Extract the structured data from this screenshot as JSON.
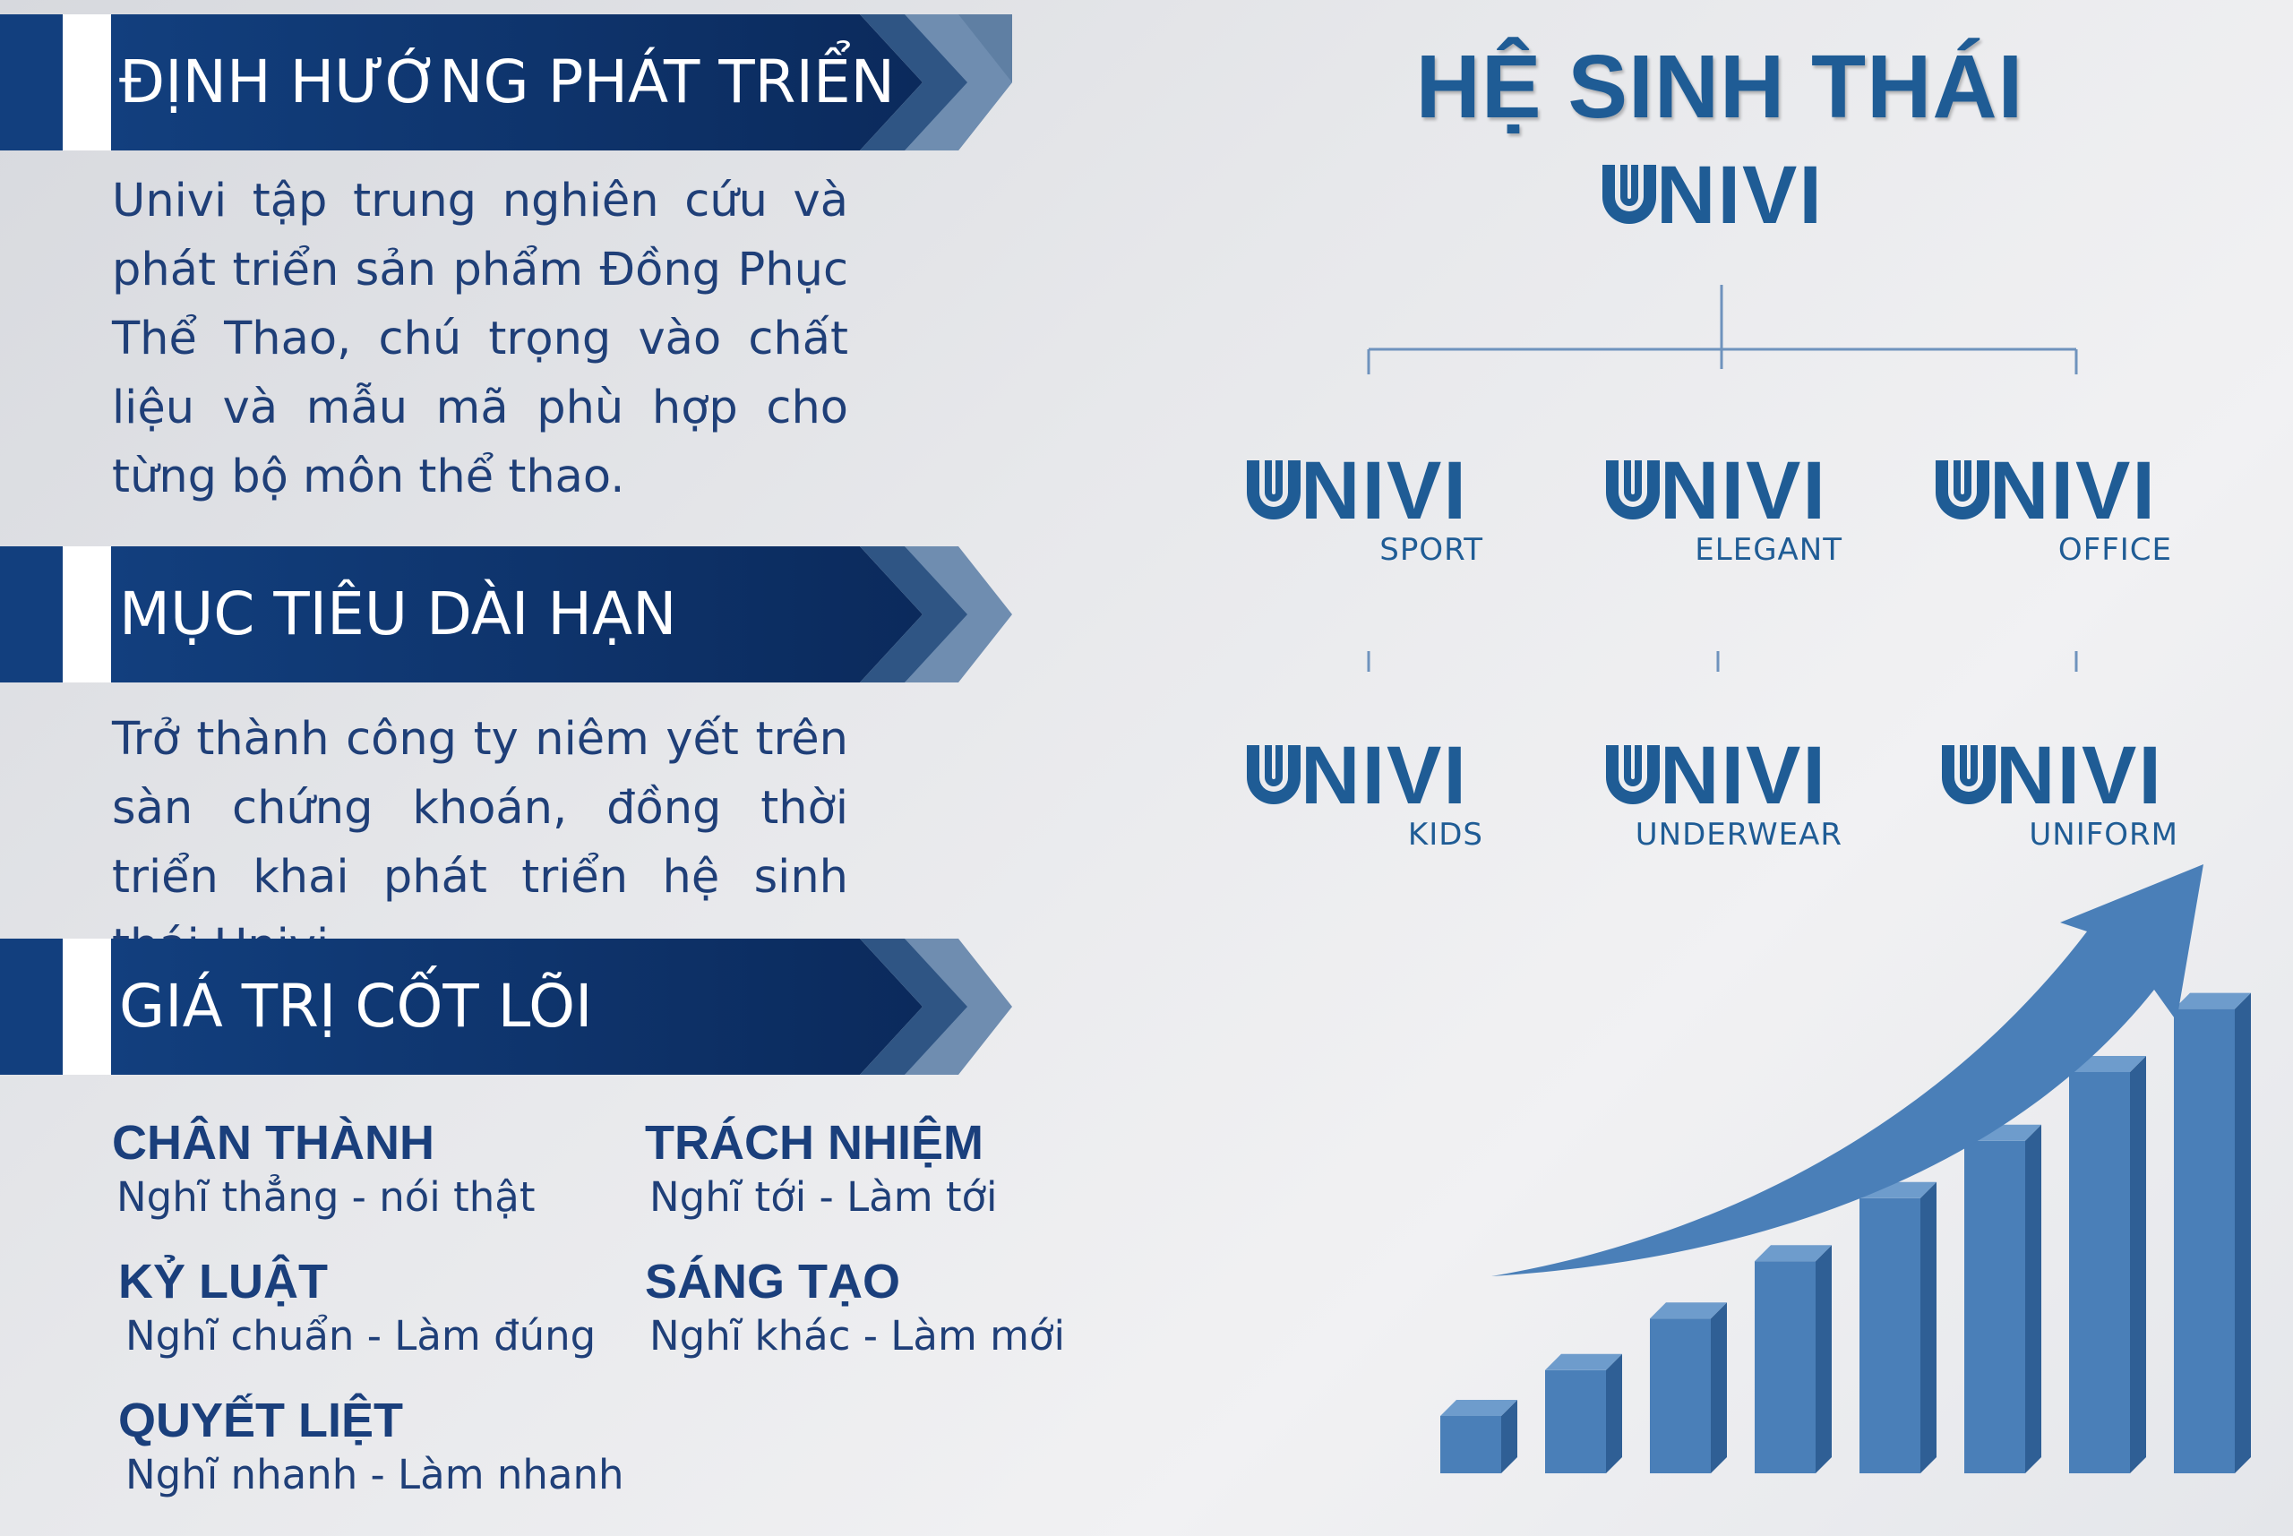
{
  "colors": {
    "navy": "#0b2a5c",
    "banner_blue": "#123f7e",
    "text_blue": "#1f3f78",
    "brand_blue": "#1f5c95",
    "bar_blue": "#4a7fb8"
  },
  "left": {
    "sections": [
      {
        "title": "ĐỊNH HƯỚNG PHÁT TRIỂN",
        "text": "Univi tập trung nghiên cứu và phát triển sản phẩm Đồng Phục Thể Thao, chú trọng vào chất liệu và mẫu mã phù hợp cho từng bộ môn thể thao."
      },
      {
        "title": "MỤC TIÊU DÀI HẠN",
        "text": "Trở thành công ty niêm yết trên sàn chứng khoán, đồng thời triển khai phát triển hệ sinh thái Univi."
      },
      {
        "title": "GIÁ TRỊ CỐT LÕI"
      }
    ],
    "core_values": [
      {
        "title": "CHÂN THÀNH",
        "subtitle": "Nghĩ thẳng - nói thật"
      },
      {
        "title": "TRÁCH NHIỆM",
        "subtitle": "Nghĩ tới - Làm tới"
      },
      {
        "title": "KỶ LUẬT",
        "subtitle": "Nghĩ chuẩn - Làm đúng"
      },
      {
        "title": "SÁNG TẠO",
        "subtitle": "Nghĩ khác - Làm mới"
      },
      {
        "title": "QUYẾT LIỆT",
        "subtitle": "Nghĩ nhanh - Làm nhanh"
      }
    ]
  },
  "right": {
    "title": "HỆ SINH THÁI",
    "main_brand": "NIVI",
    "sub_brands": [
      {
        "word": "NIVI",
        "line": "SPORT"
      },
      {
        "word": "NIVI",
        "line": "ELEGANT"
      },
      {
        "word": "NIVI",
        "line": "OFFICE"
      },
      {
        "word": "NIVI",
        "line": "KIDS"
      },
      {
        "word": "NIVI",
        "line": "UNDERWEAR"
      },
      {
        "word": "NIVI",
        "line": "UNIFORM"
      }
    ],
    "growth_bars": [
      0.1,
      0.18,
      0.27,
      0.37,
      0.48,
      0.58,
      0.7,
      0.81
    ]
  }
}
